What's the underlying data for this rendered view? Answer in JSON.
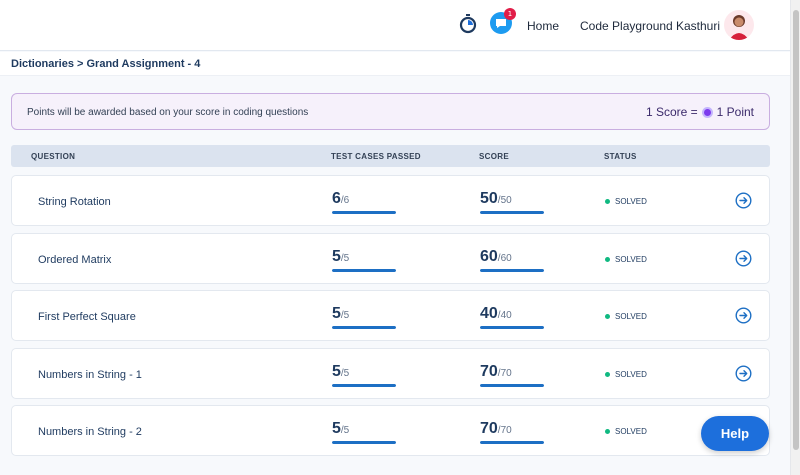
{
  "header": {
    "nav_home": "Home",
    "nav_code_playground": "Code Playground",
    "user_name": "Kasthuri",
    "chat_badge": "1",
    "accent_color": "#1d9bf0"
  },
  "breadcrumb": "Dictionaries > Grand Assignment - 4",
  "info": {
    "message": "Points will be awarded based on your score in coding questions",
    "score_label": "1 Score =",
    "point_label": "1 Point"
  },
  "table": {
    "headers": {
      "question": "QUESTION",
      "test_cases": "TEST CASES PASSED",
      "score": "SCORE",
      "status": "STATUS"
    },
    "rows": [
      {
        "name": "String Rotation",
        "passed": "6",
        "total": "/6",
        "score": "50",
        "max": "/50",
        "status": "SOLVED"
      },
      {
        "name": "Ordered Matrix",
        "passed": "5",
        "total": "/5",
        "score": "60",
        "max": "/60",
        "status": "SOLVED"
      },
      {
        "name": "First Perfect Square",
        "passed": "5",
        "total": "/5",
        "score": "40",
        "max": "/40",
        "status": "SOLVED"
      },
      {
        "name": "Numbers in String - 1",
        "passed": "5",
        "total": "/5",
        "score": "70",
        "max": "/70",
        "status": "SOLVED"
      },
      {
        "name": "Numbers in String - 2",
        "passed": "5",
        "total": "/5",
        "score": "70",
        "max": "/70",
        "status": "SOLVED"
      }
    ]
  },
  "help_label": "Help",
  "status_color": "#10b981"
}
